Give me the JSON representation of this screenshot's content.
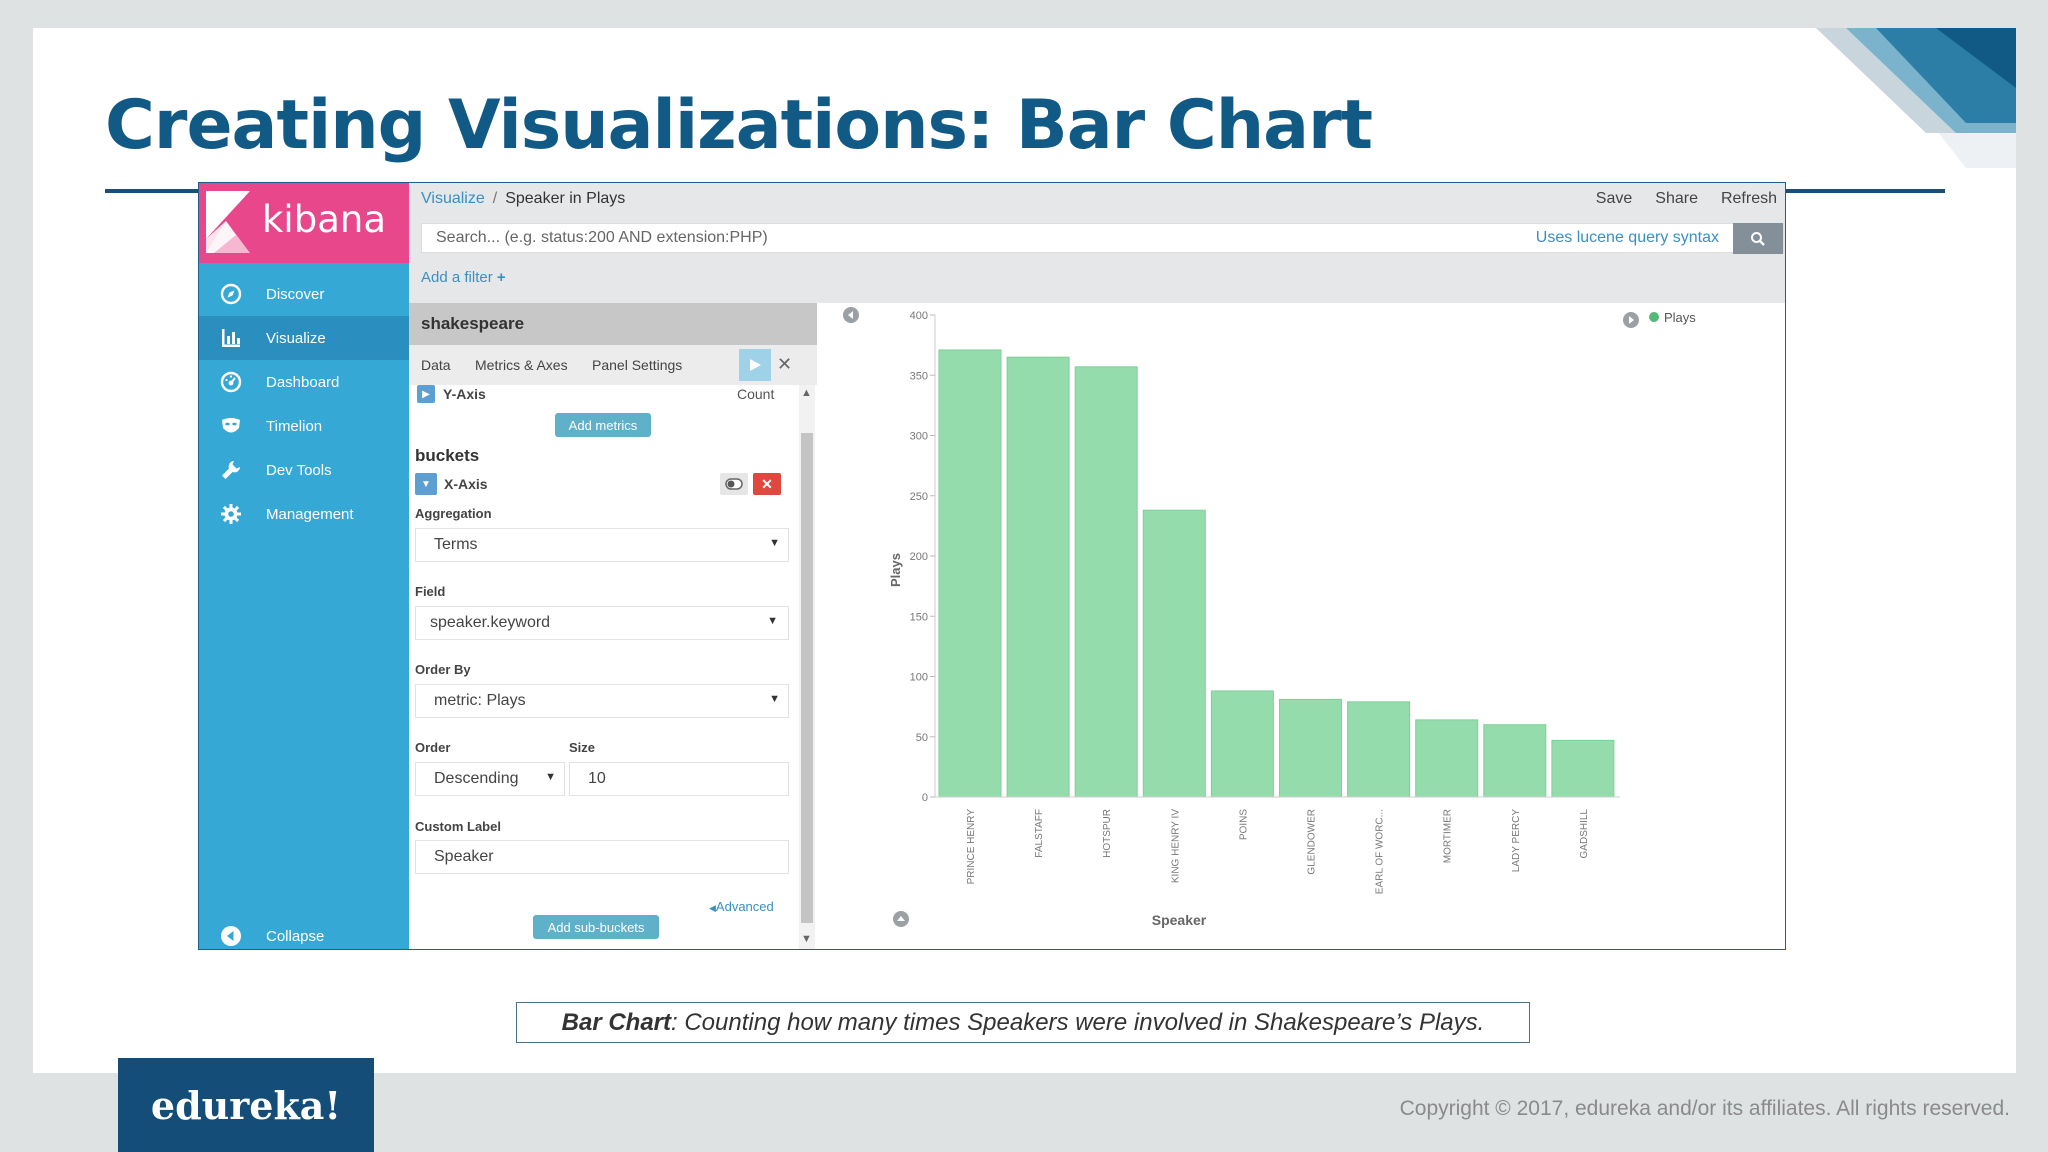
{
  "slide": {
    "title": "Creating Visualizations: Bar Chart",
    "caption_bold": "Bar Chart",
    "caption_rest": ": Counting how many times Speakers were involved in Shakespeare’s Plays.",
    "logo": "edureka!",
    "copyright": "Copyright © 2017, edureka and/or its affiliates. All rights reserved."
  },
  "app": {
    "name": "kibana",
    "nav": [
      {
        "label": "Discover",
        "icon": "compass-icon"
      },
      {
        "label": "Visualize",
        "icon": "bar-chart-icon",
        "active": true
      },
      {
        "label": "Dashboard",
        "icon": "gauge-icon"
      },
      {
        "label": "Timelion",
        "icon": "timelion-mask-icon"
      },
      {
        "label": "Dev Tools",
        "icon": "wrench-icon"
      },
      {
        "label": "Management",
        "icon": "gear-icon"
      }
    ],
    "collapse": "Collapse"
  },
  "topbar": {
    "breadcrumb_link": "Visualize",
    "breadcrumb_sep": "/",
    "breadcrumb_current": "Speaker in Plays",
    "actions": [
      "Save",
      "Share",
      "Refresh"
    ],
    "search_placeholder": "Search... (e.g. status:200 AND extension:PHP)",
    "search_hint": "Uses lucene query syntax",
    "add_filter": "Add a filter"
  },
  "editor": {
    "index": "shakespeare",
    "tabs": [
      "Data",
      "Metrics & Axes",
      "Panel Settings"
    ],
    "y_axis_label": "Y-Axis",
    "y_axis_value": "Count",
    "add_metrics": "Add metrics",
    "buckets_heading": "buckets",
    "x_axis_label": "X-Axis",
    "aggregation_label": "Aggregation",
    "aggregation_value": "Terms",
    "field_label": "Field",
    "field_value": "speaker.keyword",
    "order_by_label": "Order By",
    "order_by_value": "metric: Plays",
    "order_label": "Order",
    "order_value": "Descending",
    "size_label": "Size",
    "size_value": "10",
    "custom_label_label": "Custom Label",
    "custom_label_value": "Speaker",
    "advanced": "Advanced",
    "add_sub_buckets": "Add sub-buckets"
  },
  "chart_data": {
    "type": "bar",
    "categories": [
      "PRINCE HENRY",
      "FALSTAFF",
      "HOTSPUR",
      "KING HENRY IV",
      "POINS",
      "GLENDOWER",
      "EARL OF WORC...",
      "MORTIMER",
      "LADY PERCY",
      "GADSHILL"
    ],
    "series": [
      {
        "name": "Plays",
        "values": [
          371,
          365,
          357,
          238,
          88,
          81,
          79,
          64,
          60,
          47
        ],
        "color": "#94dcab"
      }
    ],
    "xlabel": "Speaker",
    "ylabel": "Plays",
    "yticks": [
      0,
      50,
      100,
      150,
      200,
      250,
      300,
      350,
      400
    ],
    "ylim": [
      0,
      400
    ],
    "legend": "top-right"
  }
}
